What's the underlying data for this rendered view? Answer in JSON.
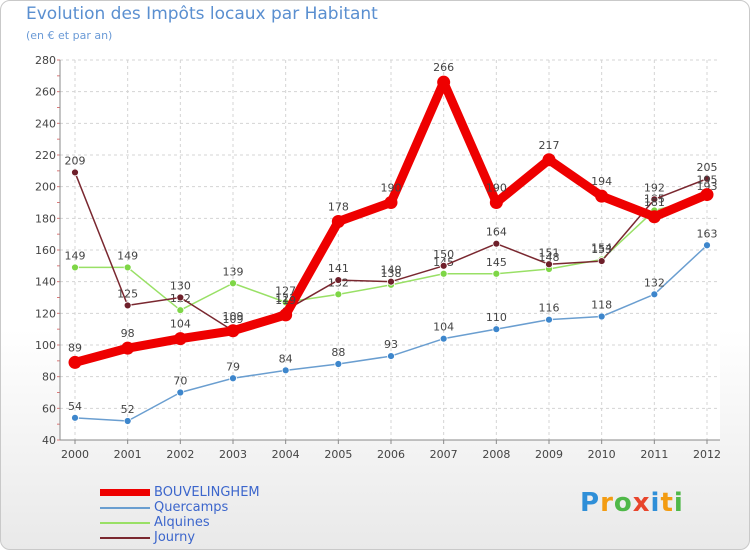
{
  "header": {
    "title": "Evolution des Impôts locaux par Habitant",
    "subtitle": "(en € et par an)"
  },
  "logo": {
    "letters": [
      "P",
      "r",
      "o",
      "x",
      "i",
      "t",
      "i"
    ],
    "colors": [
      "#2f8fd8",
      "#f39c12",
      "#4fb848",
      "#e8452c",
      "#2f8fd8",
      "#f39c12",
      "#4fb848"
    ]
  },
  "chart_data": {
    "type": "line",
    "title": "Evolution des Impôts locaux par Habitant",
    "subtitle": "(en € et par an)",
    "xlabel": "",
    "ylabel": "",
    "ylim": [
      40,
      280
    ],
    "yticks": [
      40,
      60,
      80,
      100,
      120,
      140,
      160,
      180,
      200,
      220,
      240,
      260,
      280
    ],
    "categories": [
      "2000",
      "2001",
      "2002",
      "2003",
      "2004",
      "2005",
      "2006",
      "2007",
      "2008",
      "2009",
      "2010",
      "2011",
      "2012"
    ],
    "grid": true,
    "legend_position": "bottom-left",
    "series": [
      {
        "name": "Alquines",
        "color": "#99e066",
        "marker": "#7ed646",
        "weight": "thin",
        "values": [
          149,
          149,
          122,
          139,
          127,
          132,
          138,
          145,
          145,
          148,
          154,
          185,
          193
        ],
        "labels": [
          "149",
          "149",
          "122",
          "139",
          "127",
          "132",
          "138",
          "145",
          "145",
          "148",
          "154",
          "185",
          "193"
        ]
      },
      {
        "name": "Journy",
        "color": "#7a2830",
        "marker": "#6e1f2a",
        "weight": "thin",
        "values": [
          209,
          125,
          130,
          109,
          122,
          141,
          140,
          150,
          164,
          151,
          153,
          192,
          205
        ],
        "labels": [
          "209",
          "125",
          "130",
          "109",
          "122",
          "141",
          "140",
          "150",
          "164",
          "151",
          "153",
          "192",
          "205"
        ]
      },
      {
        "name": "Quercamps",
        "color": "#6a9ed0",
        "marker": "#3d86cc",
        "weight": "thin",
        "values": [
          54,
          52,
          70,
          79,
          84,
          88,
          93,
          104,
          110,
          116,
          118,
          132,
          163
        ],
        "labels": [
          "54",
          "52",
          "70",
          "79",
          "84",
          "88",
          "93",
          "104",
          "110",
          "116",
          "118",
          "132",
          "163"
        ]
      },
      {
        "name": "BOUVELINGHEM",
        "color": "#ee0000",
        "marker": "#ee0000",
        "weight": "thick",
        "values": [
          89,
          98,
          104,
          109,
          119,
          178,
          190,
          266,
          190,
          217,
          194,
          181,
          195
        ],
        "labels": [
          "89",
          "98",
          "104",
          "109",
          "119",
          "178",
          "190",
          "266",
          "190",
          "217",
          "194",
          "181",
          "195"
        ]
      }
    ],
    "legend": [
      "BOUVELINGHEM",
      "Quercamps",
      "Alquines",
      "Journy"
    ]
  }
}
